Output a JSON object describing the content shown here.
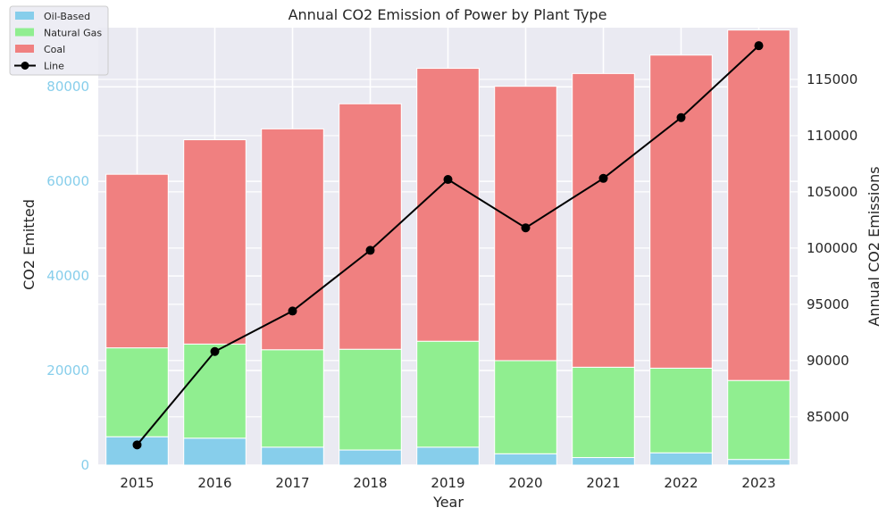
{
  "chart_data": {
    "type": "bar",
    "title": "Annual CO2 Emission of Power by Plant Type",
    "xlabel": "Year",
    "ylabel": "CO2 Emitted",
    "y2label": "Annual CO2 Emissions",
    "categories": [
      "2015",
      "2016",
      "2017",
      "2018",
      "2019",
      "2020",
      "2021",
      "2022",
      "2023"
    ],
    "stacked": true,
    "series": [
      {
        "name": "Oil-Based",
        "color": "#87ceeb",
        "values": [
          6000,
          5700,
          3800,
          3200,
          3800,
          2400,
          1600,
          2600,
          1200
        ]
      },
      {
        "name": "Natural Gas",
        "color": "#90ee90",
        "values": [
          18800,
          19900,
          20600,
          21300,
          22400,
          19700,
          19100,
          17900,
          16700
        ]
      },
      {
        "name": "Coal",
        "color": "#f08080",
        "values": [
          36700,
          43200,
          46700,
          51900,
          57700,
          58000,
          62100,
          66200,
          74100
        ]
      }
    ],
    "line": {
      "name": "Line",
      "color": "#000000",
      "axis": "right",
      "values": [
        82500,
        90800,
        94400,
        99800,
        106100,
        101800,
        106200,
        111600,
        118000
      ]
    },
    "ylim": [
      0,
      92500
    ],
    "y2lim": [
      80700,
      119600
    ],
    "yticks": [
      0,
      20000,
      40000,
      60000,
      80000
    ],
    "y2ticks": [
      85000,
      90000,
      95000,
      100000,
      105000,
      110000,
      115000
    ],
    "grid": true,
    "legend_position": "top-left",
    "background_color": "#eaeaf2"
  }
}
